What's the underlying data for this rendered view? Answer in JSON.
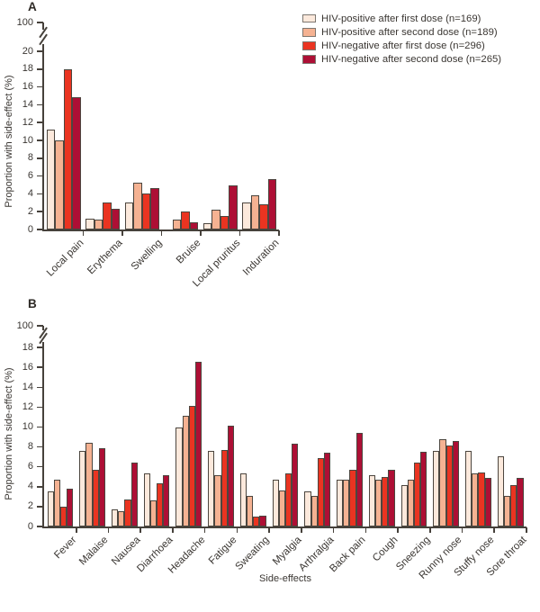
{
  "colors": {
    "axis": "#46413b",
    "bar_border": "#4c463f",
    "text": "#3a3632",
    "legend_swatch_border": "#7d7770",
    "background": "#ffffff"
  },
  "legend": {
    "items": [
      {
        "label": "HIV-positive after first dose (n=169)",
        "color": "#fce9dc"
      },
      {
        "label": "HIV-positive after second dose (n=189)",
        "color": "#f5b292"
      },
      {
        "label": "HIV-negative after first dose (n=296)",
        "color": "#ea3421"
      },
      {
        "label": "HIV-negative after second dose (n=265)",
        "color": "#ad0f35"
      }
    ]
  },
  "chart_data": [
    {
      "panel": "A",
      "type": "bar",
      "ylabel": "Proportion with side-effect (%)",
      "ylim": [
        0,
        20
      ],
      "yticks": [
        0,
        2,
        4,
        6,
        8,
        10,
        12,
        14,
        16,
        18,
        20
      ],
      "ybreak_label": "100",
      "grid": false,
      "legend_position": "top-right",
      "categories": [
        "Local pain",
        "Erythema",
        "Swelling",
        "Bruise",
        "Local pruritus",
        "Induration"
      ],
      "series": [
        {
          "name": "HIV-positive after first dose (n=169)",
          "color": "#fce9dc",
          "values": [
            11.2,
            1.2,
            3.0,
            0,
            0.7,
            3.0
          ]
        },
        {
          "name": "HIV-positive after second dose (n=189)",
          "color": "#f5b292",
          "values": [
            10.0,
            1.1,
            5.3,
            1.1,
            2.2,
            3.8
          ]
        },
        {
          "name": "HIV-negative after first dose (n=296)",
          "color": "#ea3421",
          "values": [
            18.0,
            3.0,
            4.0,
            2.0,
            1.5,
            2.8
          ]
        },
        {
          "name": "HIV-negative after second dose (n=265)",
          "color": "#ad0f35",
          "values": [
            14.8,
            2.3,
            4.6,
            0.8,
            5.0,
            5.7
          ]
        }
      ]
    },
    {
      "panel": "B",
      "type": "bar",
      "xlabel": "Side-effects",
      "ylabel": "Proportion with side-effect (%)",
      "ylim": [
        0,
        18
      ],
      "yticks": [
        0,
        2,
        4,
        6,
        8,
        10,
        12,
        14,
        16,
        18
      ],
      "ybreak_label": "100",
      "grid": false,
      "categories": [
        "Fever",
        "Malaise",
        "Nausea",
        "Diarrhoea",
        "Headache",
        "Fatigue",
        "Sweating",
        "Myalgia",
        "Arthralgia",
        "Back pain",
        "Cough",
        "Sneezing",
        "Runny nose",
        "Stuffy nose",
        "Sore throat"
      ],
      "series": [
        {
          "name": "HIV-positive after first dose (n=169)",
          "color": "#fce9dc",
          "values": [
            3.5,
            7.6,
            1.7,
            5.3,
            10.0,
            7.6,
            5.3,
            4.7,
            3.5,
            4.7,
            5.2,
            4.2,
            7.6,
            7.6,
            7.1
          ]
        },
        {
          "name": "HIV-positive after second dose (n=189)",
          "color": "#f5b292",
          "values": [
            4.7,
            8.4,
            1.5,
            2.6,
            11.1,
            5.2,
            3.1,
            3.6,
            3.1,
            4.7,
            4.7,
            4.7,
            8.8,
            5.3,
            3.1
          ]
        },
        {
          "name": "HIV-negative after first dose (n=296)",
          "color": "#ea3421",
          "values": [
            2.0,
            5.7,
            2.7,
            4.3,
            12.1,
            7.7,
            1.0,
            5.3,
            6.9,
            5.7,
            5.0,
            6.4,
            8.1,
            5.4,
            4.2
          ]
        },
        {
          "name": "HIV-negative after second dose (n=265)",
          "color": "#ad0f35",
          "values": [
            3.8,
            7.9,
            6.4,
            5.2,
            16.6,
            10.1,
            1.1,
            8.3,
            7.4,
            9.4,
            5.7,
            7.5,
            8.6,
            4.9,
            4.9
          ]
        }
      ]
    }
  ]
}
